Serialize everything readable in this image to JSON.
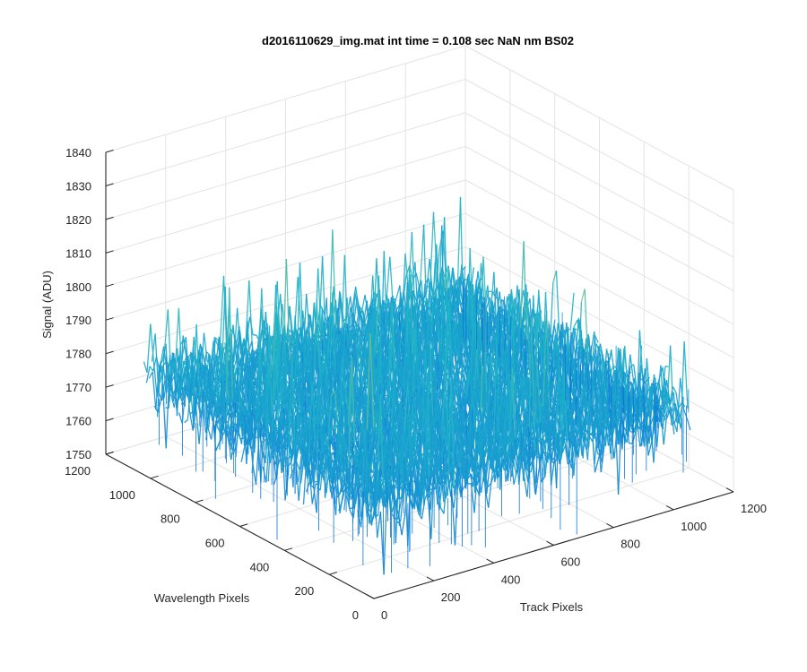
{
  "chart_data": {
    "type": "surface3d",
    "title": "d2016110629_img.mat int time = 0.108 sec  NaN nm BS02",
    "xlabel": "Track Pixels",
    "ylabel": "Wavelength Pixels",
    "zlabel": "Signal (ADU)",
    "xlim": [
      0,
      1200
    ],
    "ylim": [
      0,
      1200
    ],
    "zlim": [
      1750,
      1840
    ],
    "x_ticks": [
      "0",
      "200",
      "400",
      "600",
      "800",
      "1000",
      "1200"
    ],
    "y_ticks": [
      "0",
      "200",
      "400",
      "600",
      "800",
      "1000",
      "1200"
    ],
    "z_ticks": [
      "1750",
      "1760",
      "1770",
      "1780",
      "1790",
      "1800",
      "1810",
      "1820",
      "1830",
      "1840"
    ],
    "data_extent": {
      "x": [
        0,
        1056
      ],
      "y": [
        0,
        1030
      ]
    },
    "surface_mean": 1778,
    "surface_min_approx": 1752,
    "surface_max_approx": 1832,
    "colormap": "parula",
    "grid": true,
    "colors": {
      "surface_low": "#0b73d9",
      "surface_mid": "#1fb5c9",
      "surface_high": "#d9d04a",
      "axis": "#262626",
      "grid": "#e3e3e3"
    }
  }
}
